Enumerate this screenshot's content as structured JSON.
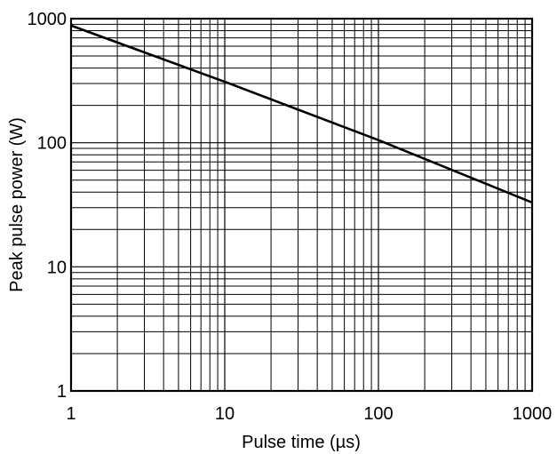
{
  "chart_data": {
    "type": "line",
    "title": "",
    "xlabel": "Pulse time (µs)",
    "ylabel": "Peak pulse power (W)",
    "x_scale": "log",
    "y_scale": "log",
    "xlim": [
      1,
      1000
    ],
    "ylim": [
      1,
      1000
    ],
    "x_ticks": [
      1,
      10,
      100,
      1000
    ],
    "y_ticks": [
      1,
      10,
      100,
      1000
    ],
    "x_tick_labels": [
      "1",
      "10",
      "100",
      "1000"
    ],
    "y_tick_labels": [
      "1",
      "10",
      "100",
      "1000"
    ],
    "grid": true,
    "legend": "none",
    "series": [
      {
        "x": [
          1,
          10,
          100,
          1000
        ],
        "y": [
          880,
          310,
          105,
          33
        ]
      }
    ],
    "colors": {
      "line": "#000000",
      "grid": "#000000",
      "background": "#ffffff"
    }
  }
}
